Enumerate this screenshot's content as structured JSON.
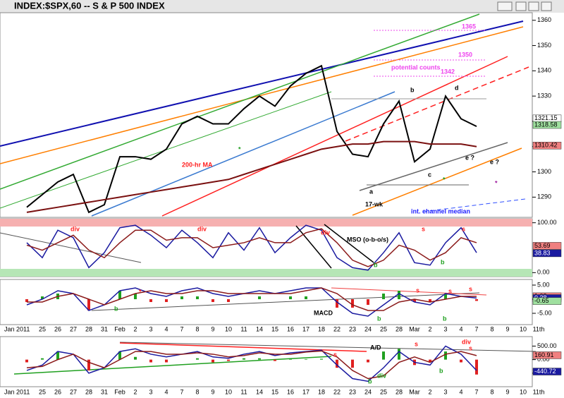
{
  "window": {
    "title": "INDEX:$SPX,60 -- S & P 500 INDEX"
  },
  "chart_data": [
    {
      "type": "line",
      "categories": [
        "Jan 2011",
        "25",
        "26",
        "27",
        "28",
        "31",
        "Feb",
        "2",
        "3",
        "4",
        "7",
        "8",
        "9",
        "10",
        "11",
        "14",
        "15",
        "16",
        "17",
        "18",
        "22",
        "23",
        "24",
        "25",
        "28",
        "Mar",
        "2",
        "3",
        "4",
        "7",
        "8",
        "9",
        "10",
        "11th"
      ],
      "ylim": [
        1282,
        1363
      ],
      "yticks": [
        1290,
        1300,
        1310,
        1320,
        1330,
        1340,
        1350,
        1360
      ],
      "series": [
        {
          "color": "#000000",
          "width": 2,
          "values": [
            1286,
            1291,
            1296,
            1299,
            1284,
            1287,
            1306,
            1306,
            1305,
            1309,
            1319,
            1322,
            1319,
            1319,
            1325,
            1330,
            1326,
            1334,
            1339,
            1342,
            1316,
            1307,
            1306,
            1319,
            1328,
            1304,
            1309,
            1330,
            1321,
            1318,
            null,
            null,
            null,
            null
          ]
        },
        {
          "color": "#7a1010",
          "width": 2,
          "values": [
            1284,
            1285,
            1286,
            1287,
            1288,
            1289,
            1290,
            1291,
            1292,
            1293,
            1294,
            1295,
            1296,
            1297,
            1299,
            1301,
            1303,
            1305,
            1307,
            1309,
            1310,
            1311,
            1311,
            1312,
            1312,
            1312,
            1311,
            1311,
            1311,
            1310,
            null,
            null,
            null,
            null
          ]
        }
      ],
      "current_values": [
        {
          "value": 1321.15,
          "color": "#ffffff"
        },
        {
          "value": 1318.58,
          "color": "#9fe09f"
        },
        {
          "value": 1310.42,
          "color": "#f08080"
        }
      ],
      "annotations": [
        "1365",
        "1350",
        "1342",
        "potential counts",
        "b",
        "d",
        "a",
        "c",
        "e ?",
        "e ?",
        "17-wk",
        "200-hr MA",
        "int. channel median",
        "*",
        "*",
        "*"
      ]
    },
    {
      "type": "line",
      "ylim": [
        -8,
        108
      ],
      "yticks": [
        {
          "value": 0,
          "label": "0.00"
        },
        {
          "value": 100,
          "label": "100.00"
        }
      ],
      "series": [
        {
          "color": "#1a1aa0",
          "width": 1.5,
          "values": [
            60,
            30,
            85,
            70,
            10,
            40,
            90,
            95,
            75,
            50,
            85,
            60,
            30,
            80,
            45,
            90,
            40,
            70,
            95,
            85,
            30,
            10,
            5,
            40,
            80,
            20,
            15,
            60,
            90,
            40,
            null,
            null,
            null,
            null
          ]
        },
        {
          "color": "#8b1a1a",
          "width": 1.5,
          "values": [
            55,
            45,
            60,
            75,
            45,
            30,
            60,
            85,
            85,
            65,
            70,
            70,
            50,
            55,
            60,
            70,
            60,
            60,
            80,
            88,
            60,
            25,
            12,
            25,
            55,
            45,
            25,
            40,
            70,
            60,
            null,
            null,
            null,
            null
          ]
        }
      ],
      "current_values": [
        {
          "value": 53.69,
          "color": "#f08080"
        },
        {
          "value": 38.83,
          "color": "#1a1aa0"
        }
      ],
      "annotations": [
        "div",
        "div",
        "MSO (o-b-o/s)",
        "div",
        "s",
        "s",
        "b",
        "b"
      ]
    },
    {
      "type": "line",
      "ylim": [
        -9,
        7
      ],
      "yticks": [
        {
          "value": -5,
          "label": "-5.00"
        },
        {
          "value": 0,
          "label": "0.00"
        },
        {
          "value": 5,
          "label": "5.00"
        }
      ],
      "series": [
        {
          "color": "#1a1aa0",
          "width": 1.5,
          "values": [
            -2,
            0,
            3,
            2,
            -4,
            -2,
            3,
            4,
            2,
            1,
            3,
            4,
            2,
            1,
            2,
            3,
            2,
            3,
            4,
            4,
            -1,
            -5,
            -6,
            -2,
            2,
            -1,
            -2,
            2,
            1,
            0.4,
            null,
            null,
            null,
            null
          ]
        },
        {
          "color": "#8b1a1a",
          "width": 1.5,
          "values": [
            -1,
            -1,
            1,
            2,
            0,
            -2,
            0,
            2,
            3,
            2,
            2,
            3,
            3,
            2,
            2,
            2,
            2,
            2,
            3,
            4,
            2,
            -2,
            -4,
            -4,
            -1,
            0,
            -1,
            0,
            1,
            1,
            null,
            null,
            null,
            null
          ]
        }
      ],
      "bar_values": [
        -1,
        1,
        2,
        0,
        -4,
        0,
        3,
        2,
        -1,
        -1,
        1,
        1,
        -1,
        -1,
        0,
        1,
        0,
        1,
        1,
        0,
        -3,
        -3,
        -2,
        2,
        3,
        -1,
        -1,
        2,
        0,
        -0.6,
        null,
        null,
        null,
        null
      ],
      "current_values": [
        {
          "value": 1.03,
          "color": "#f08080"
        },
        {
          "value": 0.38,
          "color": "#1a1aa0"
        },
        {
          "value": -0.65,
          "color": "#9fe09f"
        }
      ],
      "annotations": [
        "*",
        "b",
        "s",
        "s",
        "MACD",
        "b",
        "s",
        "b"
      ]
    },
    {
      "type": "line",
      "ylim": [
        -1000,
        850
      ],
      "yticks": [
        {
          "value": -500,
          "label": "-500.00"
        },
        {
          "value": 0,
          "label": "0.00"
        },
        {
          "value": 500,
          "label": "500.00"
        }
      ],
      "series": [
        {
          "color": "#1a1aa0",
          "width": 1.5,
          "values": [
            -400,
            -200,
            300,
            200,
            -500,
            -300,
            300,
            400,
            200,
            100,
            200,
            300,
            100,
            50,
            200,
            300,
            150,
            250,
            300,
            350,
            -200,
            -700,
            -800,
            -300,
            300,
            -100,
            -200,
            500,
            200,
            -400,
            null,
            null,
            null,
            null
          ]
        },
        {
          "color": "#8b1a1a",
          "width": 1.5,
          "values": [
            -300,
            -250,
            0,
            200,
            -100,
            -300,
            0,
            300,
            300,
            200,
            200,
            250,
            200,
            100,
            150,
            250,
            200,
            200,
            280,
            320,
            100,
            -400,
            -700,
            -600,
            -100,
            100,
            -100,
            200,
            300,
            150,
            null,
            null,
            null,
            null
          ]
        }
      ],
      "bar_values": [
        -100,
        50,
        300,
        0,
        -400,
        0,
        300,
        100,
        -100,
        -100,
        0,
        50,
        -100,
        -50,
        50,
        50,
        -50,
        50,
        20,
        30,
        -300,
        -300,
        -100,
        300,
        400,
        -200,
        -100,
        300,
        -100,
        -550,
        null,
        null,
        null,
        null
      ],
      "current_values": [
        {
          "value": 160.91,
          "color": "#f08080"
        },
        {
          "value": -440.72,
          "color": "#1a1aa0"
        }
      ],
      "annotations": [
        "A/D",
        "s",
        "s",
        "div",
        "div",
        "s",
        "b",
        "b"
      ]
    }
  ]
}
